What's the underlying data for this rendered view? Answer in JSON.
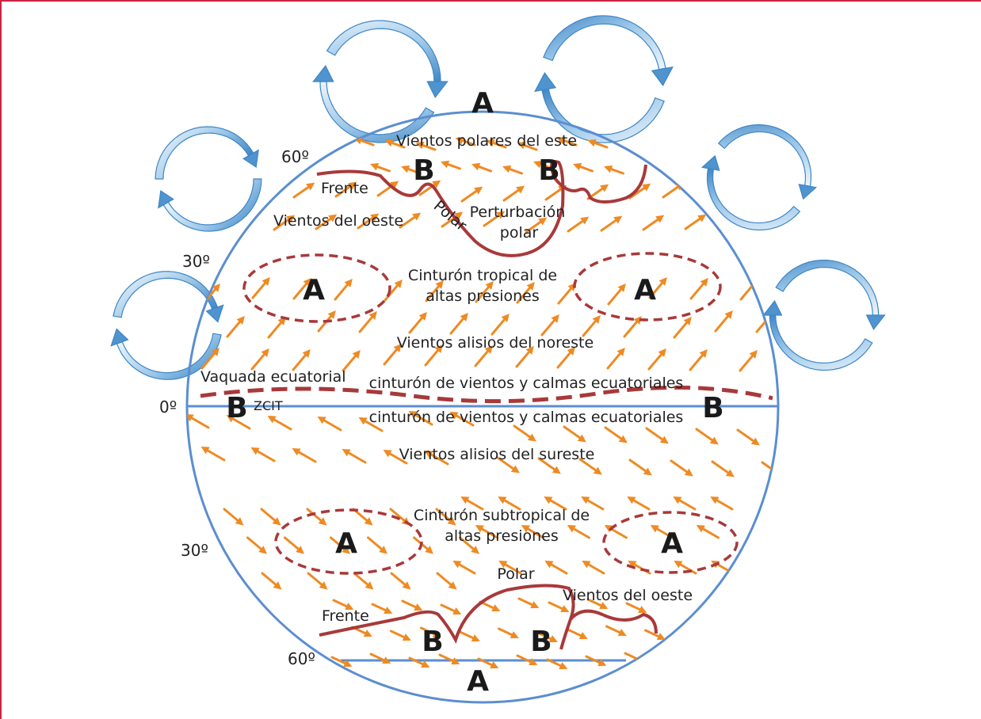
{
  "colors": {
    "globe": "#5b8ed0",
    "front": "#a8393a",
    "wind": "#ef8a22",
    "cell_dark": "#3f86c6",
    "cell_light": "#e6f2fb"
  },
  "latitudes": {
    "lat60n": "60º",
    "lat30n": "30º",
    "lat0": "0º",
    "lat30s": "30º",
    "lat60s": "60º"
  },
  "pressure": {
    "high": "A",
    "low": "B"
  },
  "labels": {
    "polar_easterlies": "Vientos polares del este",
    "front_n": "Frente",
    "polar_n": "Polar",
    "westerlies_n": "Vientos del oeste",
    "perturbacion_1": "Perturbación",
    "perturbacion_2": "polar",
    "tropical_belt_1": "Cinturón tropical de",
    "tropical_belt_2": "altas presiones",
    "ne_trades": "Vientos alisios del noreste",
    "trough": "Vaquada ecuatorial",
    "itcz": "ZCIT",
    "doldrums_n": "cinturón de vientos y calmas ecuatoriales",
    "doldrums_s": "cinturón de vientos y calmas ecuatoriales",
    "se_trades": "Vientos alisios del sureste",
    "subtropical_belt_1": "Cinturón subtropical de",
    "subtropical_belt_2": "altas presiones",
    "polar_s": "Polar",
    "westerlies_s": "Vientos del oeste",
    "front_s": "Frente"
  }
}
